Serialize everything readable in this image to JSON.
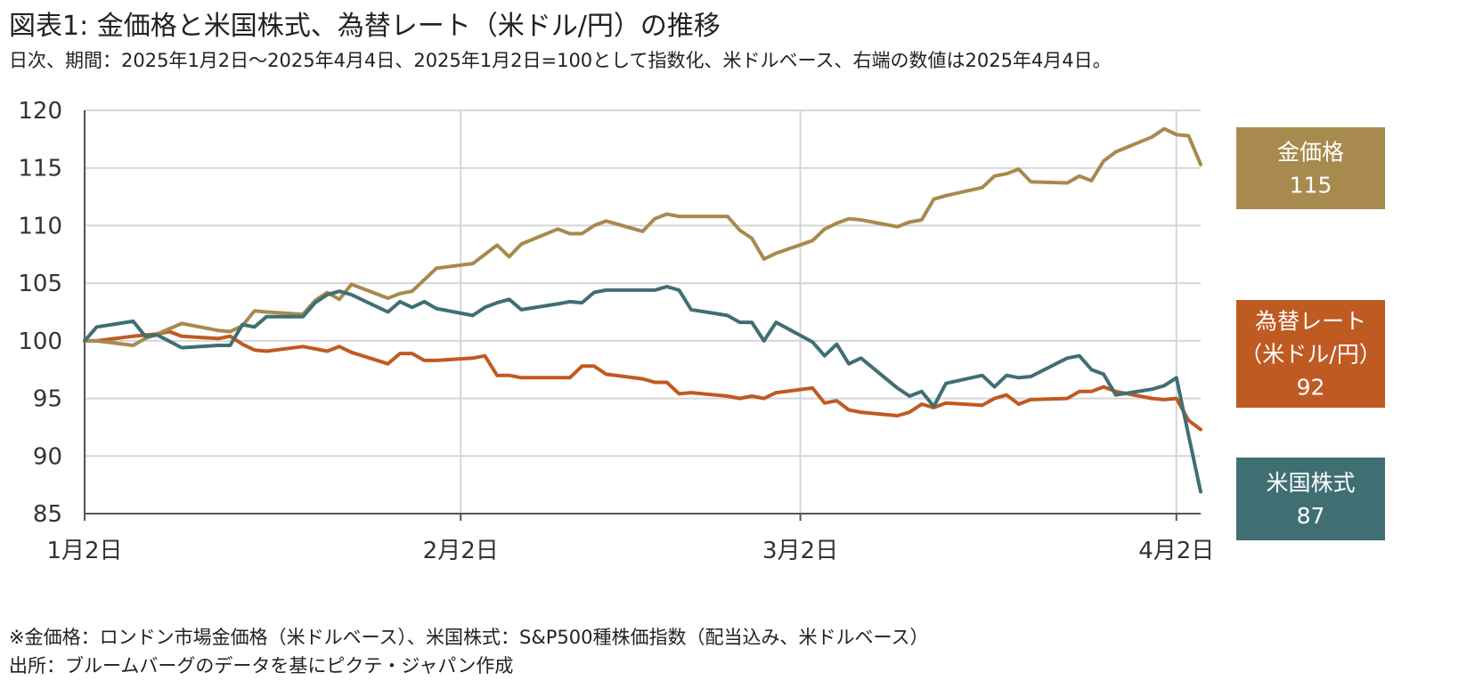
{
  "title": "図表1: 金価格と米国株式、為替レート（米ドル/円）の推移",
  "subtitle": "日次、期間：2025年1月2日～2025年4月4日、2025年1月2日=100として指数化、米ドルベース、右端の数値は2025年4月4日。",
  "notes": [
    "※金価格：ロンドン市場金価格（米ドルベース）、米国株式：S&P500種株価指数（配当込み、米ドルベース）",
    "出所：ブルームバーグのデータを基にピクテ・ジャパン作成"
  ],
  "chart_data": {
    "type": "line",
    "ylim": [
      85,
      120
    ],
    "yticks": [
      "85",
      "90",
      "95",
      "100",
      "105",
      "110",
      "115",
      "120"
    ],
    "xlim": [
      "2025-01-02",
      "2025-04-04"
    ],
    "xticks": [
      {
        "date": "2025-01-02",
        "label": "1月2日"
      },
      {
        "date": "2025-02-02",
        "label": "2月2日"
      },
      {
        "date": "2025-03-02",
        "label": "3月2日"
      },
      {
        "date": "2025-04-02",
        "label": "4月2日"
      }
    ],
    "grid": true,
    "series": [
      {
        "name": "金価格",
        "color": "#A8894E",
        "end_label": "115",
        "points": [
          [
            "2025-01-02",
            100.0
          ],
          [
            "2025-01-03",
            100.0
          ],
          [
            "2025-01-06",
            99.6
          ],
          [
            "2025-01-07",
            100.2
          ],
          [
            "2025-01-08",
            100.6
          ],
          [
            "2025-01-10",
            101.5
          ],
          [
            "2025-01-13",
            100.9
          ],
          [
            "2025-01-14",
            100.8
          ],
          [
            "2025-01-15",
            101.3
          ],
          [
            "2025-01-16",
            102.6
          ],
          [
            "2025-01-17",
            102.5
          ],
          [
            "2025-01-20",
            102.3
          ],
          [
            "2025-01-21",
            103.5
          ],
          [
            "2025-01-22",
            104.2
          ],
          [
            "2025-01-23",
            103.6
          ],
          [
            "2025-01-24",
            104.9
          ],
          [
            "2025-01-27",
            103.7
          ],
          [
            "2025-01-28",
            104.1
          ],
          [
            "2025-01-29",
            104.3
          ],
          [
            "2025-01-30",
            105.3
          ],
          [
            "2025-01-31",
            106.3
          ],
          [
            "2025-02-03",
            106.7
          ],
          [
            "2025-02-04",
            107.5
          ],
          [
            "2025-02-05",
            108.3
          ],
          [
            "2025-02-06",
            107.3
          ],
          [
            "2025-02-07",
            108.4
          ],
          [
            "2025-02-10",
            109.7
          ],
          [
            "2025-02-11",
            109.3
          ],
          [
            "2025-02-12",
            109.3
          ],
          [
            "2025-02-13",
            110.0
          ],
          [
            "2025-02-14",
            110.4
          ],
          [
            "2025-02-17",
            109.5
          ],
          [
            "2025-02-18",
            110.6
          ],
          [
            "2025-02-19",
            111.0
          ],
          [
            "2025-02-20",
            110.8
          ],
          [
            "2025-02-21",
            110.8
          ],
          [
            "2025-02-24",
            110.8
          ],
          [
            "2025-02-25",
            109.6
          ],
          [
            "2025-02-26",
            108.9
          ],
          [
            "2025-02-27",
            107.1
          ],
          [
            "2025-02-28",
            107.6
          ],
          [
            "2025-03-03",
            108.7
          ],
          [
            "2025-03-04",
            109.7
          ],
          [
            "2025-03-05",
            110.2
          ],
          [
            "2025-03-06",
            110.6
          ],
          [
            "2025-03-07",
            110.5
          ],
          [
            "2025-03-10",
            109.9
          ],
          [
            "2025-03-11",
            110.3
          ],
          [
            "2025-03-12",
            110.5
          ],
          [
            "2025-03-13",
            112.3
          ],
          [
            "2025-03-14",
            112.6
          ],
          [
            "2025-03-17",
            113.3
          ],
          [
            "2025-03-18",
            114.3
          ],
          [
            "2025-03-19",
            114.5
          ],
          [
            "2025-03-20",
            114.9
          ],
          [
            "2025-03-21",
            113.8
          ],
          [
            "2025-03-24",
            113.7
          ],
          [
            "2025-03-25",
            114.3
          ],
          [
            "2025-03-26",
            113.9
          ],
          [
            "2025-03-27",
            115.6
          ],
          [
            "2025-03-28",
            116.4
          ],
          [
            "2025-03-31",
            117.7
          ],
          [
            "2025-04-01",
            118.4
          ],
          [
            "2025-04-02",
            117.9
          ],
          [
            "2025-04-03",
            117.8
          ],
          [
            "2025-04-04",
            115.3
          ]
        ]
      },
      {
        "name": "為替レート（米ドル/円）",
        "color": "#BF5A22",
        "end_label": "92",
        "points": [
          [
            "2025-01-02",
            100.0
          ],
          [
            "2025-01-03",
            100.0
          ],
          [
            "2025-01-06",
            100.4
          ],
          [
            "2025-01-07",
            100.5
          ],
          [
            "2025-01-08",
            100.6
          ],
          [
            "2025-01-09",
            100.8
          ],
          [
            "2025-01-10",
            100.4
          ],
          [
            "2025-01-13",
            100.2
          ],
          [
            "2025-01-14",
            100.4
          ],
          [
            "2025-01-15",
            99.7
          ],
          [
            "2025-01-16",
            99.2
          ],
          [
            "2025-01-17",
            99.1
          ],
          [
            "2025-01-20",
            99.5
          ],
          [
            "2025-01-21",
            99.3
          ],
          [
            "2025-01-22",
            99.1
          ],
          [
            "2025-01-23",
            99.5
          ],
          [
            "2025-01-24",
            99.0
          ],
          [
            "2025-01-27",
            98.0
          ],
          [
            "2025-01-28",
            98.9
          ],
          [
            "2025-01-29",
            98.9
          ],
          [
            "2025-01-30",
            98.3
          ],
          [
            "2025-01-31",
            98.3
          ],
          [
            "2025-02-03",
            98.5
          ],
          [
            "2025-02-04",
            98.7
          ],
          [
            "2025-02-05",
            97.0
          ],
          [
            "2025-02-06",
            97.0
          ],
          [
            "2025-02-07",
            96.8
          ],
          [
            "2025-02-10",
            96.8
          ],
          [
            "2025-02-11",
            96.8
          ],
          [
            "2025-02-12",
            97.8
          ],
          [
            "2025-02-13",
            97.8
          ],
          [
            "2025-02-14",
            97.1
          ],
          [
            "2025-02-17",
            96.7
          ],
          [
            "2025-02-18",
            96.4
          ],
          [
            "2025-02-19",
            96.4
          ],
          [
            "2025-02-20",
            95.4
          ],
          [
            "2025-02-21",
            95.5
          ],
          [
            "2025-02-24",
            95.2
          ],
          [
            "2025-02-25",
            95.0
          ],
          [
            "2025-02-26",
            95.2
          ],
          [
            "2025-02-27",
            95.0
          ],
          [
            "2025-02-28",
            95.5
          ],
          [
            "2025-03-03",
            95.9
          ],
          [
            "2025-03-04",
            94.6
          ],
          [
            "2025-03-05",
            94.8
          ],
          [
            "2025-03-06",
            94.0
          ],
          [
            "2025-03-07",
            93.8
          ],
          [
            "2025-03-10",
            93.5
          ],
          [
            "2025-03-11",
            93.8
          ],
          [
            "2025-03-12",
            94.5
          ],
          [
            "2025-03-13",
            94.2
          ],
          [
            "2025-03-14",
            94.6
          ],
          [
            "2025-03-17",
            94.4
          ],
          [
            "2025-03-18",
            95.0
          ],
          [
            "2025-03-19",
            95.3
          ],
          [
            "2025-03-20",
            94.5
          ],
          [
            "2025-03-21",
            94.9
          ],
          [
            "2025-03-24",
            95.0
          ],
          [
            "2025-03-25",
            95.6
          ],
          [
            "2025-03-26",
            95.6
          ],
          [
            "2025-03-27",
            96.0
          ],
          [
            "2025-03-28",
            95.6
          ],
          [
            "2025-03-31",
            95.0
          ],
          [
            "2025-04-01",
            94.9
          ],
          [
            "2025-04-02",
            95.0
          ],
          [
            "2025-04-03",
            93.1
          ],
          [
            "2025-04-04",
            92.3
          ]
        ]
      },
      {
        "name": "米国株式",
        "color": "#3F6F73",
        "end_label": "87",
        "points": [
          [
            "2025-01-02",
            100.0
          ],
          [
            "2025-01-03",
            101.2
          ],
          [
            "2025-01-06",
            101.7
          ],
          [
            "2025-01-07",
            100.4
          ],
          [
            "2025-01-08",
            100.5
          ],
          [
            "2025-01-10",
            99.4
          ],
          [
            "2025-01-13",
            99.6
          ],
          [
            "2025-01-14",
            99.6
          ],
          [
            "2025-01-15",
            101.4
          ],
          [
            "2025-01-16",
            101.2
          ],
          [
            "2025-01-17",
            102.1
          ],
          [
            "2025-01-20",
            102.1
          ],
          [
            "2025-01-21",
            103.3
          ],
          [
            "2025-01-22",
            104.0
          ],
          [
            "2025-01-23",
            104.3
          ],
          [
            "2025-01-24",
            104.0
          ],
          [
            "2025-01-27",
            102.5
          ],
          [
            "2025-01-28",
            103.4
          ],
          [
            "2025-01-29",
            102.9
          ],
          [
            "2025-01-30",
            103.4
          ],
          [
            "2025-01-31",
            102.8
          ],
          [
            "2025-02-03",
            102.2
          ],
          [
            "2025-02-04",
            102.9
          ],
          [
            "2025-02-05",
            103.3
          ],
          [
            "2025-02-06",
            103.6
          ],
          [
            "2025-02-07",
            102.7
          ],
          [
            "2025-02-10",
            103.2
          ],
          [
            "2025-02-11",
            103.4
          ],
          [
            "2025-02-12",
            103.3
          ],
          [
            "2025-02-13",
            104.2
          ],
          [
            "2025-02-14",
            104.4
          ],
          [
            "2025-02-18",
            104.4
          ],
          [
            "2025-02-19",
            104.7
          ],
          [
            "2025-02-20",
            104.4
          ],
          [
            "2025-02-21",
            102.7
          ],
          [
            "2025-02-24",
            102.2
          ],
          [
            "2025-02-25",
            101.6
          ],
          [
            "2025-02-26",
            101.6
          ],
          [
            "2025-02-27",
            100.0
          ],
          [
            "2025-02-28",
            101.6
          ],
          [
            "2025-03-03",
            99.9
          ],
          [
            "2025-03-04",
            98.7
          ],
          [
            "2025-03-05",
            99.7
          ],
          [
            "2025-03-06",
            98.0
          ],
          [
            "2025-03-07",
            98.5
          ],
          [
            "2025-03-10",
            95.9
          ],
          [
            "2025-03-11",
            95.2
          ],
          [
            "2025-03-12",
            95.6
          ],
          [
            "2025-03-13",
            94.3
          ],
          [
            "2025-03-14",
            96.3
          ],
          [
            "2025-03-17",
            97.0
          ],
          [
            "2025-03-18",
            96.0
          ],
          [
            "2025-03-19",
            97.0
          ],
          [
            "2025-03-20",
            96.8
          ],
          [
            "2025-03-21",
            96.9
          ],
          [
            "2025-03-24",
            98.5
          ],
          [
            "2025-03-25",
            98.7
          ],
          [
            "2025-03-26",
            97.5
          ],
          [
            "2025-03-27",
            97.1
          ],
          [
            "2025-03-28",
            95.3
          ],
          [
            "2025-03-31",
            95.8
          ],
          [
            "2025-04-01",
            96.1
          ],
          [
            "2025-04-02",
            96.8
          ],
          [
            "2025-04-03",
            91.8
          ],
          [
            "2025-04-04",
            86.9
          ]
        ]
      }
    ]
  }
}
